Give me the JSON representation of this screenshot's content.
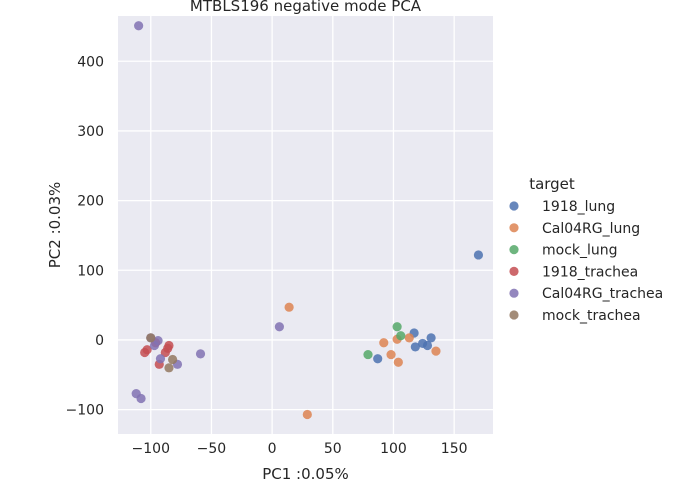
{
  "chart_data": {
    "type": "scatter",
    "title": "MTBLS196 negative mode PCA",
    "xlabel": "PC1 :0.05%",
    "ylabel": "PC2 :0.03%",
    "xlim": [
      -127,
      182
    ],
    "ylim": [
      -135,
      465
    ],
    "x_ticks": [
      -100,
      -50,
      0,
      50,
      100,
      150
    ],
    "y_ticks": [
      -100,
      0,
      100,
      200,
      300,
      400
    ],
    "x_tick_labels": [
      "−100",
      "−50",
      "0",
      "50",
      "100",
      "150"
    ],
    "y_tick_labels": [
      "−100",
      "0",
      "100",
      "200",
      "300",
      "400"
    ],
    "grid": true,
    "legend": {
      "title": "target",
      "placement": "right"
    },
    "series": [
      {
        "name": "1918_lung",
        "color": "#4c72b0",
        "points": [
          [
            170,
            122
          ],
          [
            87,
            -27
          ],
          [
            117,
            10
          ],
          [
            118,
            -10
          ],
          [
            124,
            -5
          ],
          [
            128,
            -8
          ],
          [
            131,
            3
          ]
        ]
      },
      {
        "name": "Cal04RG_lung",
        "color": "#dd8452",
        "points": [
          [
            14,
            47
          ],
          [
            29,
            -107
          ],
          [
            92,
            -4
          ],
          [
            98,
            -21
          ],
          [
            103,
            1
          ],
          [
            104,
            -32
          ],
          [
            113,
            3
          ],
          [
            135,
            -16
          ]
        ]
      },
      {
        "name": "mock_lung",
        "color": "#55a868",
        "points": [
          [
            79,
            -21
          ],
          [
            103,
            19
          ],
          [
            106,
            6
          ]
        ]
      },
      {
        "name": "1918_trachea",
        "color": "#c44e52",
        "points": [
          [
            -105,
            -18
          ],
          [
            -103,
            -14
          ],
          [
            -96,
            -4
          ],
          [
            -93,
            -35
          ],
          [
            -88,
            -18
          ],
          [
            -86,
            -12
          ],
          [
            -85,
            -8
          ]
        ]
      },
      {
        "name": "Cal04RG_trachea",
        "color": "#8172b3",
        "points": [
          [
            -110,
            451
          ],
          [
            -112,
            -77
          ],
          [
            -108,
            -84
          ],
          [
            -100,
            3
          ],
          [
            -97,
            -8
          ],
          [
            -94,
            -1
          ],
          [
            -92,
            -27
          ],
          [
            -78,
            -35
          ],
          [
            -59,
            -20
          ],
          [
            6,
            19
          ]
        ]
      },
      {
        "name": "mock_trachea",
        "color": "#937860",
        "points": [
          [
            -100,
            3
          ],
          [
            -85,
            -40
          ],
          [
            -82,
            -28
          ]
        ]
      }
    ]
  }
}
